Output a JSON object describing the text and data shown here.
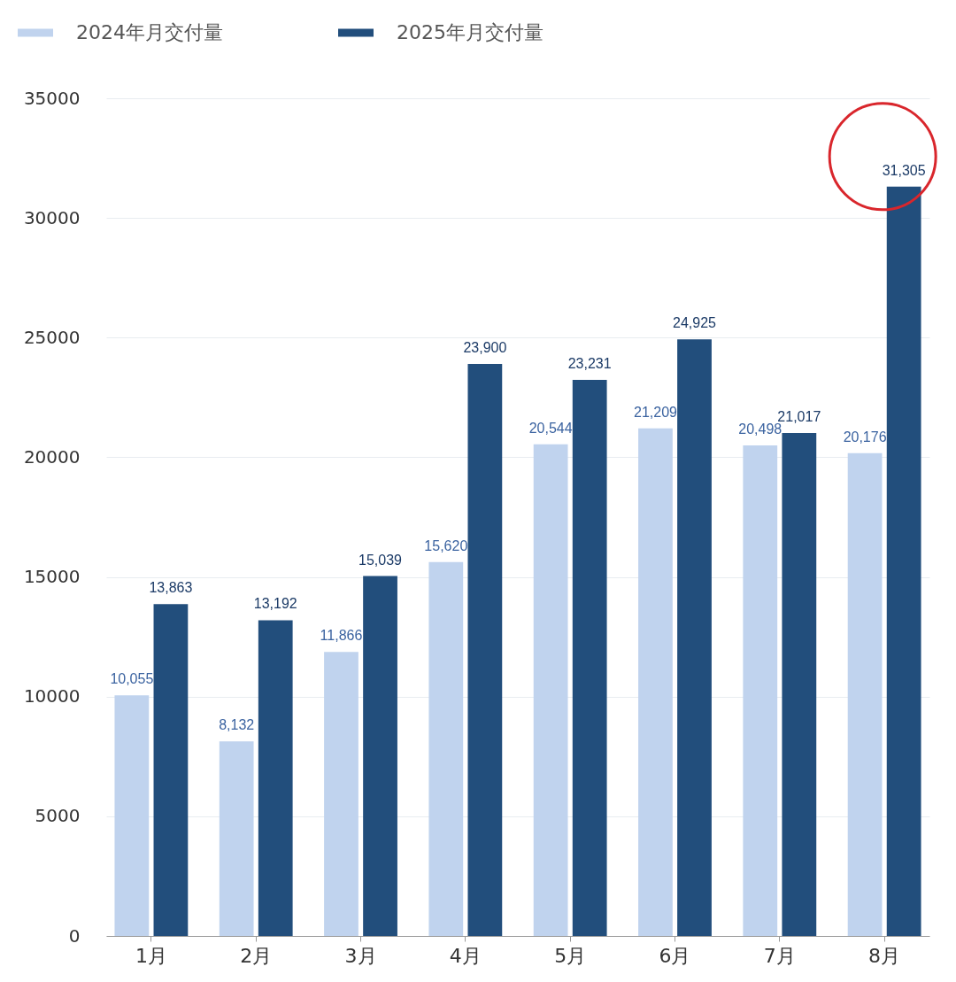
{
  "chart_data": {
    "type": "bar",
    "categories": [
      "1月",
      "2月",
      "3月",
      "4月",
      "5月",
      "6月",
      "7月",
      "8月"
    ],
    "series": [
      {
        "name": "2024年月交付量",
        "color": "#c0d3ee",
        "values": [
          10055,
          8132,
          11866,
          15620,
          20544,
          21209,
          20498,
          20176
        ],
        "value_labels": [
          "10,055",
          "8,132",
          "11,866",
          "15,620",
          "20,544",
          "21,209",
          "20,498",
          "20,176"
        ]
      },
      {
        "name": "2025年月交付量",
        "color": "#224e7c",
        "values": [
          13863,
          13192,
          15039,
          23900,
          23231,
          24925,
          21017,
          31305
        ],
        "value_labels": [
          "13,863",
          "13,192",
          "15,039",
          "23,900",
          "23,231",
          "24,925",
          "21,017",
          "31,305"
        ]
      }
    ],
    "ylim": [
      0,
      35000
    ],
    "yticks": [
      0,
      5000,
      10000,
      15000,
      20000,
      25000,
      30000,
      35000
    ],
    "grid": "y",
    "legend": "top left"
  }
}
